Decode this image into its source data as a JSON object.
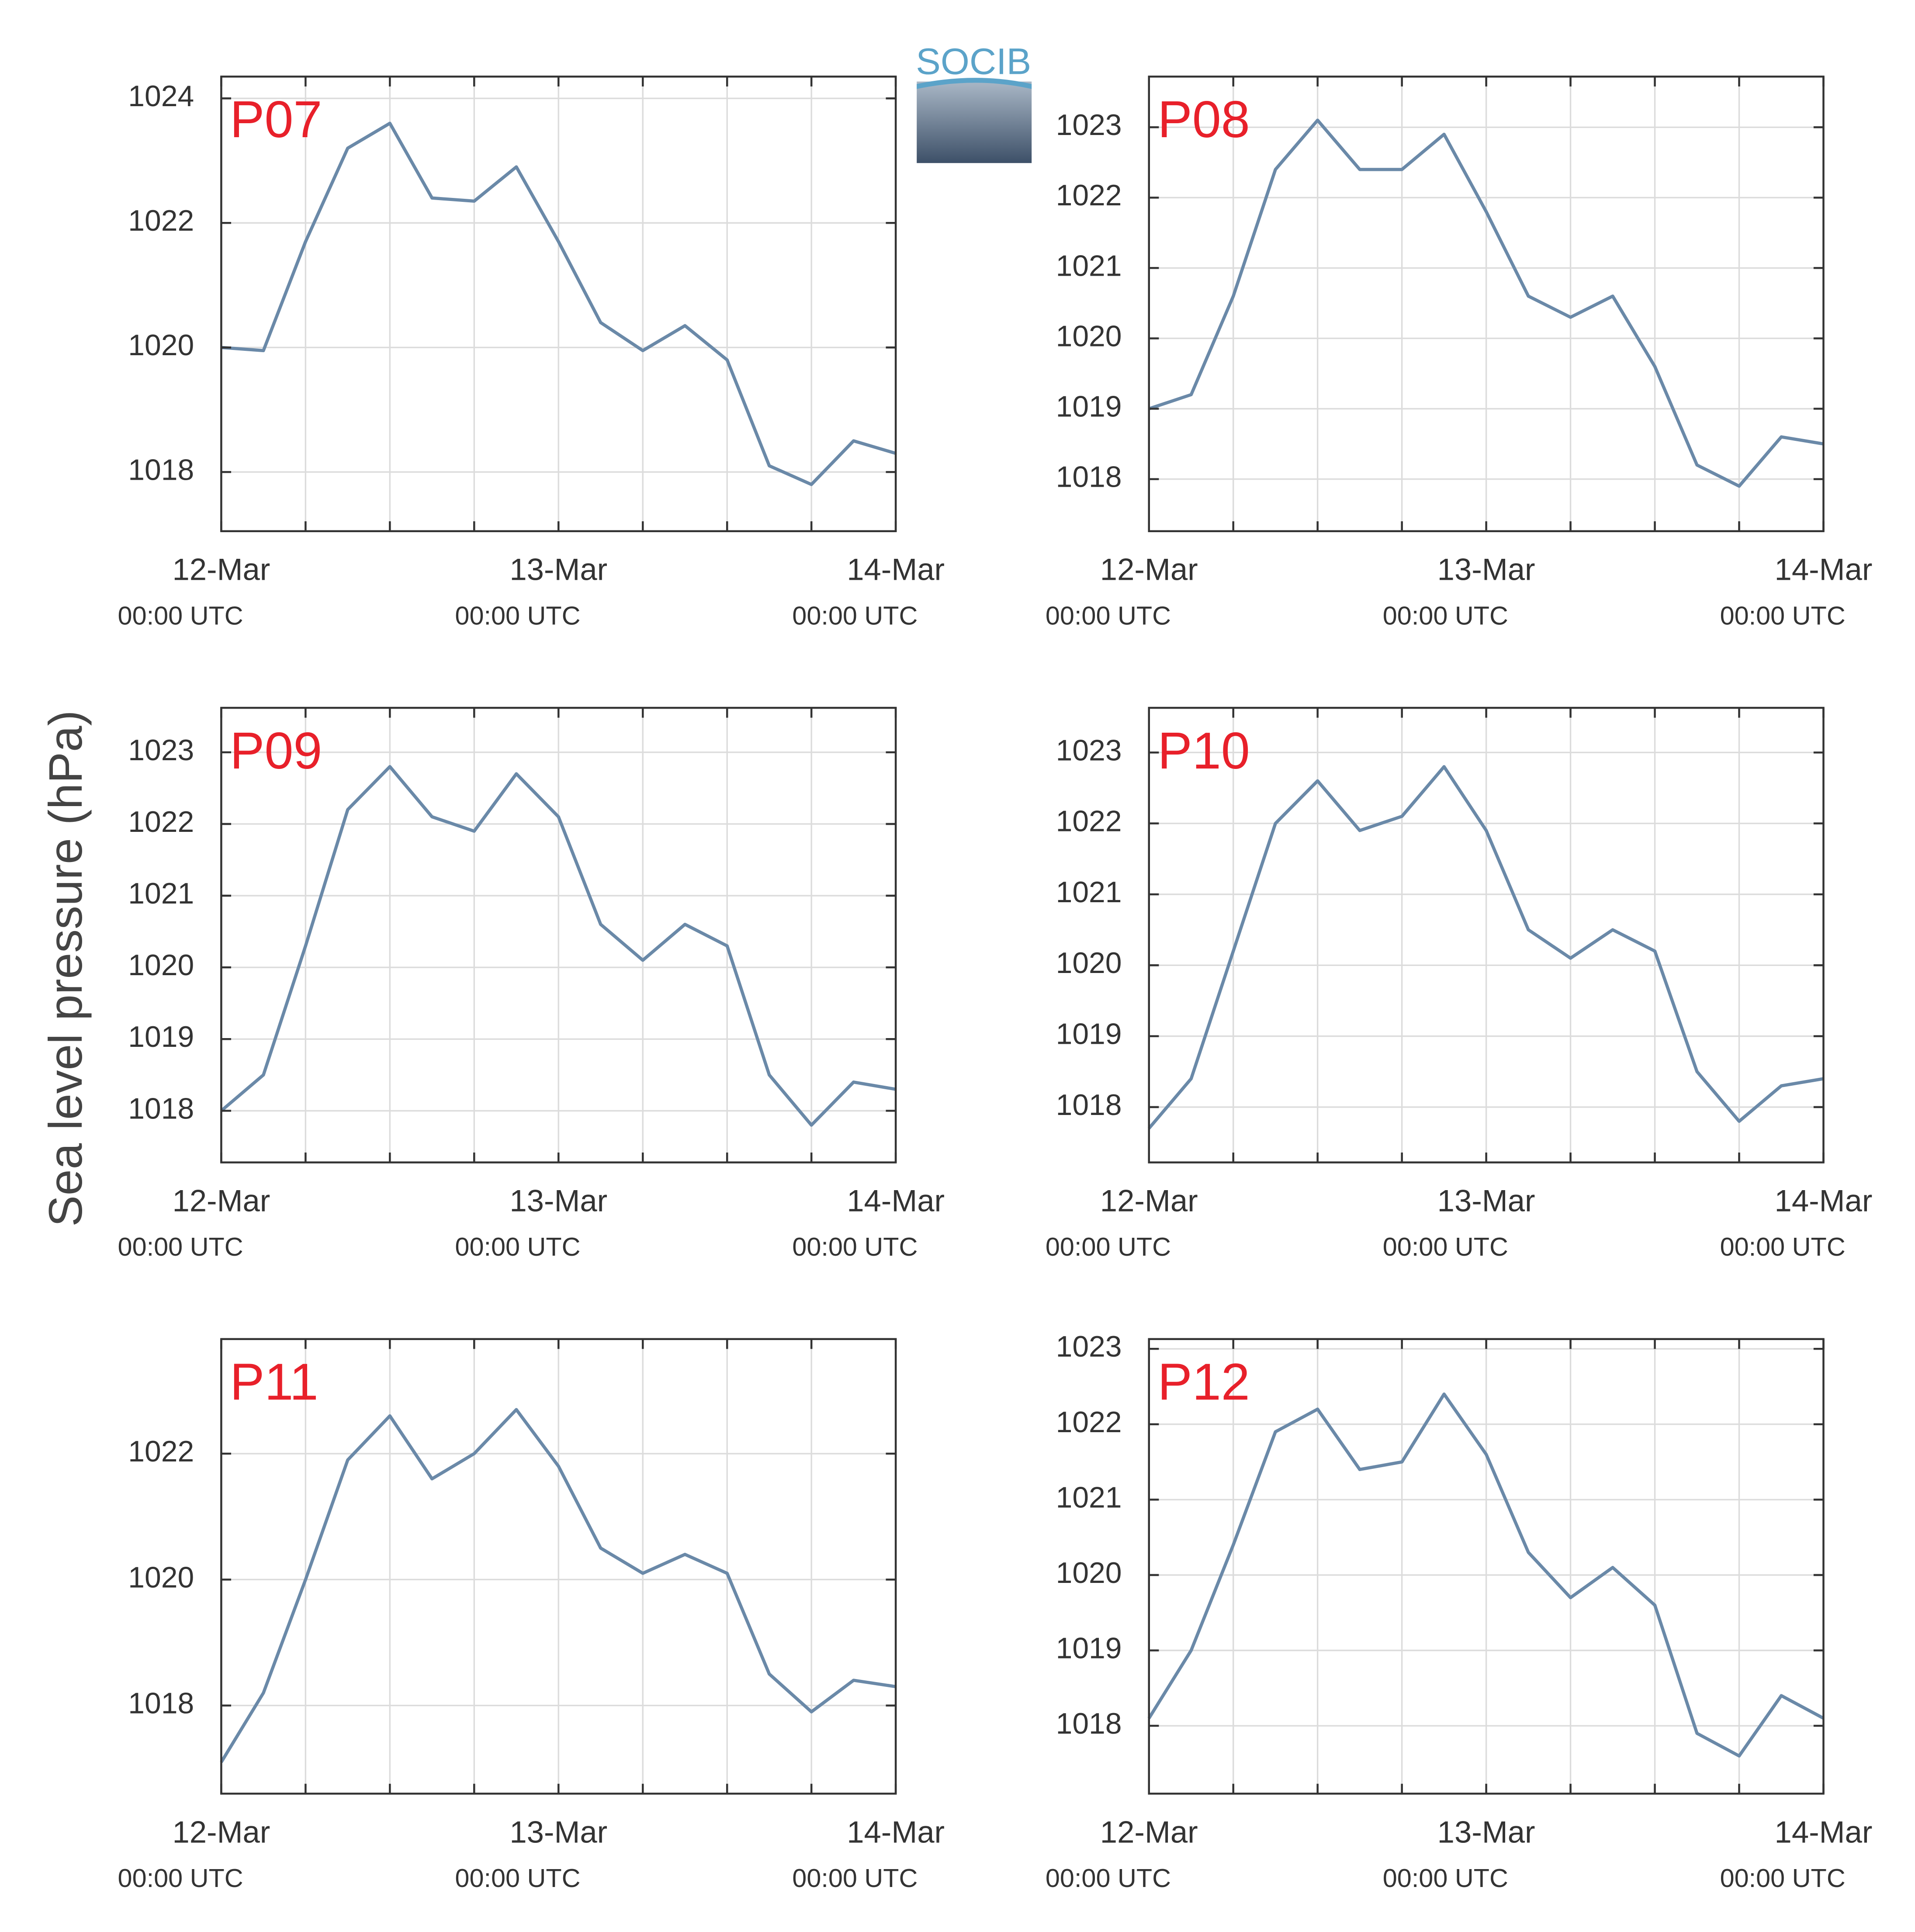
{
  "ylabel": "Sea level pressure (hPa)",
  "logo": "SOCIB",
  "chart_data": [
    {
      "type": "line",
      "title": "P07",
      "x": [
        12,
        12.125,
        12.25,
        12.375,
        12.5,
        12.625,
        12.75,
        12.875,
        13,
        13.125,
        13.25,
        13.375,
        13.5,
        13.625,
        13.75,
        13.875,
        14
      ],
      "series": [
        {
          "color": "#6a89a8",
          "values": [
            1020.0,
            1019.95,
            1021.7,
            1023.2,
            1023.6,
            1022.4,
            1022.35,
            1022.9,
            1021.7,
            1020.4,
            1019.95,
            1020.35,
            1019.8,
            1018.1,
            1017.8,
            1018.5,
            1018.3
          ]
        }
      ],
      "xlim": [
        12,
        14
      ],
      "xticks": [
        {
          "value": 12,
          "label": "12-Mar"
        },
        {
          "value": 13,
          "label": "13-Mar"
        },
        {
          "value": 14,
          "label": "14-Mar"
        }
      ],
      "xtick_sublabels": [
        "00:00 UTC",
        "00:00 UTC",
        "00:00 UTC"
      ],
      "x_minor_ticks": [
        12.25,
        12.5,
        12.75,
        13.25,
        13.5,
        13.75
      ],
      "ylim": [
        1017.05,
        1024.35
      ],
      "yticks": [
        1018,
        1020,
        1022,
        1024
      ],
      "grid": true
    },
    {
      "type": "line",
      "title": "P08",
      "x": [
        12,
        12.125,
        12.25,
        12.375,
        12.5,
        12.625,
        12.75,
        12.875,
        13,
        13.125,
        13.25,
        13.375,
        13.5,
        13.625,
        13.75,
        13.875,
        14
      ],
      "series": [
        {
          "color": "#6a89a8",
          "values": [
            1019.0,
            1019.2,
            1020.6,
            1022.4,
            1023.1,
            1022.4,
            1022.4,
            1022.9,
            1021.8,
            1020.6,
            1020.3,
            1020.6,
            1019.6,
            1018.2,
            1017.9,
            1018.6,
            1018.5
          ]
        }
      ],
      "xlim": [
        12,
        14
      ],
      "xticks": [
        {
          "value": 12,
          "label": "12-Mar"
        },
        {
          "value": 13,
          "label": "13-Mar"
        },
        {
          "value": 14,
          "label": "14-Mar"
        }
      ],
      "xtick_sublabels": [
        "00:00 UTC",
        "00:00 UTC",
        "00:00 UTC"
      ],
      "x_minor_ticks": [
        12.25,
        12.5,
        12.75,
        13.25,
        13.5,
        13.75
      ],
      "ylim": [
        1017.26,
        1023.72
      ],
      "yticks": [
        1018,
        1019,
        1020,
        1021,
        1022,
        1023
      ],
      "grid": true
    },
    {
      "type": "line",
      "title": "P09",
      "x": [
        12,
        12.125,
        12.25,
        12.375,
        12.5,
        12.625,
        12.75,
        12.875,
        13,
        13.125,
        13.25,
        13.375,
        13.5,
        13.625,
        13.75,
        13.875,
        14
      ],
      "series": [
        {
          "color": "#6a89a8",
          "values": [
            1018.0,
            1018.5,
            1020.3,
            1022.2,
            1022.8,
            1022.1,
            1021.9,
            1022.7,
            1022.1,
            1020.6,
            1020.1,
            1020.6,
            1020.3,
            1018.5,
            1017.8,
            1018.4,
            1018.3
          ]
        }
      ],
      "xlim": [
        12,
        14
      ],
      "xticks": [
        {
          "value": 12,
          "label": "12-Mar"
        },
        {
          "value": 13,
          "label": "13-Mar"
        },
        {
          "value": 14,
          "label": "14-Mar"
        }
      ],
      "xtick_sublabels": [
        "00:00 UTC",
        "00:00 UTC",
        "00:00 UTC"
      ],
      "x_minor_ticks": [
        12.25,
        12.5,
        12.75,
        13.25,
        13.5,
        13.75
      ],
      "ylim": [
        1017.28,
        1023.62
      ],
      "yticks": [
        1018,
        1019,
        1020,
        1021,
        1022,
        1023
      ],
      "grid": true
    },
    {
      "type": "line",
      "title": "P10",
      "x": [
        12,
        12.125,
        12.25,
        12.375,
        12.5,
        12.625,
        12.75,
        12.875,
        13,
        13.125,
        13.25,
        13.375,
        13.5,
        13.625,
        13.75,
        13.875,
        14
      ],
      "series": [
        {
          "color": "#6a89a8",
          "values": [
            1017.7,
            1018.4,
            1020.2,
            1022.0,
            1022.6,
            1021.9,
            1022.1,
            1022.8,
            1021.9,
            1020.5,
            1020.1,
            1020.5,
            1020.2,
            1018.5,
            1017.8,
            1018.3,
            1018.4
          ]
        }
      ],
      "xlim": [
        12,
        14
      ],
      "xticks": [
        {
          "value": 12,
          "label": "12-Mar"
        },
        {
          "value": 13,
          "label": "13-Mar"
        },
        {
          "value": 14,
          "label": "14-Mar"
        }
      ],
      "xtick_sublabels": [
        "00:00 UTC",
        "00:00 UTC",
        "00:00 UTC"
      ],
      "x_minor_ticks": [
        12.25,
        12.5,
        12.75,
        13.25,
        13.5,
        13.75
      ],
      "ylim": [
        1017.22,
        1023.63
      ],
      "yticks": [
        1018,
        1019,
        1020,
        1021,
        1022,
        1023
      ],
      "grid": true
    },
    {
      "type": "line",
      "title": "P11",
      "x": [
        12,
        12.125,
        12.25,
        12.375,
        12.5,
        12.625,
        12.75,
        12.875,
        13,
        13.125,
        13.25,
        13.375,
        13.5,
        13.625,
        13.75,
        13.875,
        14
      ],
      "series": [
        {
          "color": "#6a89a8",
          "values": [
            1017.1,
            1018.2,
            1020.0,
            1021.9,
            1022.6,
            1021.6,
            1022.0,
            1022.7,
            1021.8,
            1020.5,
            1020.1,
            1020.4,
            1020.1,
            1018.5,
            1017.9,
            1018.4,
            1018.3
          ]
        }
      ],
      "xlim": [
        12,
        14
      ],
      "xticks": [
        {
          "value": 12,
          "label": "12-Mar"
        },
        {
          "value": 13,
          "label": "13-Mar"
        },
        {
          "value": 14,
          "label": "14-Mar"
        }
      ],
      "xtick_sublabels": [
        "00:00 UTC",
        "00:00 UTC",
        "00:00 UTC"
      ],
      "x_minor_ticks": [
        12.25,
        12.5,
        12.75,
        13.25,
        13.5,
        13.75
      ],
      "ylim": [
        1016.6,
        1023.82
      ],
      "yticks": [
        1018,
        1020,
        1022
      ],
      "grid": true
    },
    {
      "type": "line",
      "title": "P12",
      "x": [
        12,
        12.125,
        12.25,
        12.375,
        12.5,
        12.625,
        12.75,
        12.875,
        13,
        13.125,
        13.25,
        13.375,
        13.5,
        13.625,
        13.75,
        13.875,
        14
      ],
      "series": [
        {
          "color": "#6a89a8",
          "values": [
            1018.1,
            1019.0,
            1020.4,
            1021.9,
            1022.2,
            1021.4,
            1021.5,
            1022.4,
            1021.6,
            1020.3,
            1019.7,
            1020.1,
            1019.6,
            1017.9,
            1017.6,
            1018.4,
            1018.1
          ]
        }
      ],
      "xlim": [
        12,
        14
      ],
      "xticks": [
        {
          "value": 12,
          "label": "12-Mar"
        },
        {
          "value": 13,
          "label": "13-Mar"
        },
        {
          "value": 14,
          "label": "14-Mar"
        }
      ],
      "xtick_sublabels": [
        "00:00 UTC",
        "00:00 UTC",
        "00:00 UTC"
      ],
      "x_minor_ticks": [
        12.25,
        12.5,
        12.75,
        13.25,
        13.5,
        13.75
      ],
      "ylim": [
        1017.1,
        1023.13
      ],
      "yticks": [
        1018,
        1019,
        1020,
        1021,
        1022,
        1023
      ],
      "grid": true
    }
  ]
}
